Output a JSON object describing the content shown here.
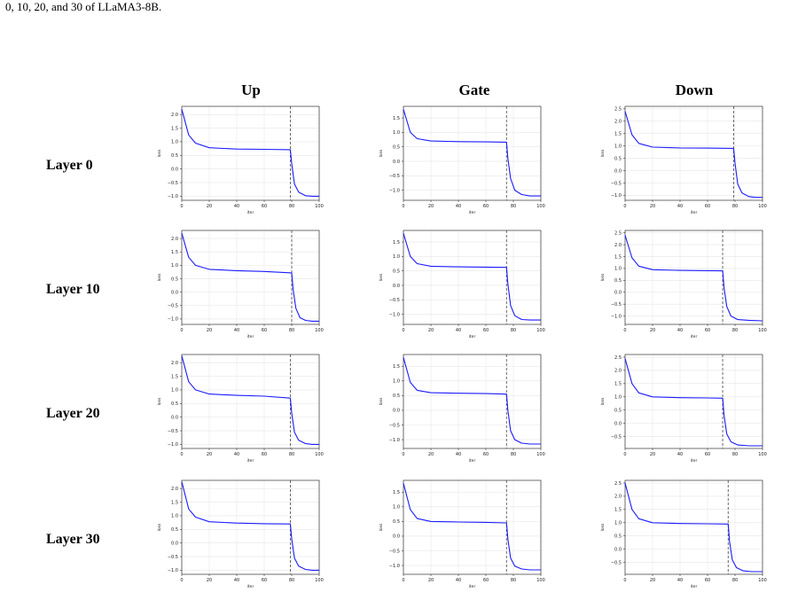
{
  "caption_fragment": "0, 10, 20, and 30 of LLaMA3-8B.",
  "column_titles": [
    "Up",
    "Gate",
    "Down"
  ],
  "row_titles": [
    "Layer 0",
    "Layer 10",
    "Layer 20",
    "Layer 30"
  ],
  "style": {
    "line_color": "#1a1aff",
    "dashed_color": "#444444",
    "grid_color": "#e6e6e6",
    "axis_color": "#333333"
  },
  "chart_data": [
    {
      "type": "line",
      "panel": "Layer 0 / Up",
      "xlabel": "iter",
      "ylabel": "loss",
      "xlim": [
        0,
        100
      ],
      "ylim": [
        -1.15,
        2.3
      ],
      "xticks": [
        0,
        20,
        40,
        60,
        80,
        100
      ],
      "yticks": [
        -1.0,
        -0.5,
        0.0,
        0.5,
        1.0,
        1.5,
        2.0
      ],
      "grid": true,
      "switch_iter": 79,
      "x": [
        0,
        5,
        10,
        20,
        40,
        60,
        79,
        80,
        82,
        85,
        90,
        95,
        100
      ],
      "y": [
        2.2,
        1.25,
        0.95,
        0.78,
        0.73,
        0.72,
        0.71,
        0.2,
        -0.55,
        -0.85,
        -0.98,
        -1.0,
        -1.0
      ]
    },
    {
      "type": "line",
      "panel": "Layer 0 / Gate",
      "xlabel": "iter",
      "ylabel": "loss",
      "xlim": [
        0,
        100
      ],
      "ylim": [
        -1.35,
        1.9
      ],
      "xticks": [
        0,
        20,
        40,
        60,
        80,
        100
      ],
      "yticks": [
        -1.0,
        -0.5,
        0.0,
        0.5,
        1.0,
        1.5
      ],
      "grid": true,
      "switch_iter": 75,
      "x": [
        0,
        5,
        10,
        20,
        40,
        60,
        75,
        76,
        78,
        81,
        86,
        92,
        100
      ],
      "y": [
        1.8,
        1.0,
        0.78,
        0.7,
        0.68,
        0.67,
        0.66,
        0.1,
        -0.6,
        -1.0,
        -1.15,
        -1.2,
        -1.2
      ]
    },
    {
      "type": "line",
      "panel": "Layer 0 / Down",
      "xlabel": "iter",
      "ylabel": "loss",
      "xlim": [
        0,
        100
      ],
      "ylim": [
        -1.2,
        2.6
      ],
      "xticks": [
        0,
        20,
        40,
        60,
        80,
        100
      ],
      "yticks": [
        -1.0,
        -0.5,
        0.0,
        0.5,
        1.0,
        1.5,
        2.0,
        2.5
      ],
      "grid": true,
      "switch_iter": 79,
      "x": [
        0,
        5,
        10,
        20,
        40,
        60,
        79,
        80,
        82,
        85,
        90,
        95,
        100
      ],
      "y": [
        2.4,
        1.45,
        1.1,
        0.95,
        0.92,
        0.91,
        0.9,
        0.3,
        -0.55,
        -0.9,
        -1.05,
        -1.08,
        -1.08
      ]
    },
    {
      "type": "line",
      "panel": "Layer 10 / Up",
      "xlabel": "iter",
      "ylabel": "loss",
      "xlim": [
        0,
        100
      ],
      "ylim": [
        -1.2,
        2.3
      ],
      "xticks": [
        0,
        20,
        40,
        60,
        80,
        100
      ],
      "yticks": [
        -1.0,
        -0.5,
        0.0,
        0.5,
        1.0,
        1.5,
        2.0
      ],
      "grid": true,
      "switch_iter": 80,
      "x": [
        0,
        5,
        10,
        20,
        40,
        60,
        80,
        81,
        83,
        86,
        90,
        95,
        100
      ],
      "y": [
        2.2,
        1.3,
        1.0,
        0.85,
        0.8,
        0.77,
        0.72,
        0.1,
        -0.6,
        -0.95,
        -1.05,
        -1.08,
        -1.08
      ]
    },
    {
      "type": "line",
      "panel": "Layer 10 / Gate",
      "xlabel": "iter",
      "ylabel": "loss",
      "xlim": [
        0,
        100
      ],
      "ylim": [
        -1.35,
        1.9
      ],
      "xticks": [
        0,
        20,
        40,
        60,
        80,
        100
      ],
      "yticks": [
        -1.0,
        -0.5,
        0.0,
        0.5,
        1.0,
        1.5
      ],
      "grid": true,
      "switch_iter": 75,
      "x": [
        0,
        5,
        10,
        20,
        40,
        60,
        75,
        76,
        78,
        81,
        86,
        92,
        100
      ],
      "y": [
        1.8,
        1.0,
        0.75,
        0.66,
        0.64,
        0.63,
        0.62,
        0.05,
        -0.7,
        -1.05,
        -1.18,
        -1.2,
        -1.2
      ]
    },
    {
      "type": "line",
      "panel": "Layer 10 / Down",
      "xlabel": "iter",
      "ylabel": "loss",
      "xlim": [
        0,
        100
      ],
      "ylim": [
        -1.35,
        2.6
      ],
      "xticks": [
        0,
        20,
        40,
        60,
        80,
        100
      ],
      "yticks": [
        -1.0,
        -0.5,
        0.0,
        0.5,
        1.0,
        1.5,
        2.0,
        2.5
      ],
      "grid": true,
      "switch_iter": 71,
      "x": [
        0,
        5,
        10,
        20,
        40,
        60,
        71,
        72,
        74,
        77,
        82,
        90,
        100
      ],
      "y": [
        2.4,
        1.45,
        1.1,
        0.95,
        0.92,
        0.91,
        0.9,
        0.2,
        -0.6,
        -1.0,
        -1.15,
        -1.18,
        -1.2
      ]
    },
    {
      "type": "line",
      "panel": "Layer 20 / Up",
      "xlabel": "iter",
      "ylabel": "loss",
      "xlim": [
        0,
        100
      ],
      "ylim": [
        -1.15,
        2.3
      ],
      "xticks": [
        0,
        20,
        40,
        60,
        80,
        100
      ],
      "yticks": [
        -1.0,
        -0.5,
        0.0,
        0.5,
        1.0,
        1.5,
        2.0
      ],
      "grid": true,
      "switch_iter": 79,
      "x": [
        0,
        5,
        10,
        20,
        40,
        60,
        79,
        80,
        82,
        85,
        90,
        95,
        100
      ],
      "y": [
        2.25,
        1.3,
        1.0,
        0.85,
        0.8,
        0.77,
        0.7,
        0.15,
        -0.55,
        -0.85,
        -0.97,
        -1.0,
        -1.0
      ]
    },
    {
      "type": "line",
      "panel": "Layer 20 / Gate",
      "xlabel": "iter",
      "ylabel": "loss",
      "xlim": [
        0,
        100
      ],
      "ylim": [
        -1.3,
        1.9
      ],
      "xticks": [
        0,
        20,
        40,
        60,
        80,
        100
      ],
      "yticks": [
        -1.0,
        -0.5,
        0.0,
        0.5,
        1.0,
        1.5
      ],
      "grid": true,
      "switch_iter": 75,
      "x": [
        0,
        5,
        10,
        20,
        40,
        60,
        75,
        76,
        78,
        81,
        86,
        92,
        100
      ],
      "y": [
        1.8,
        0.95,
        0.68,
        0.6,
        0.58,
        0.57,
        0.55,
        0.0,
        -0.7,
        -1.0,
        -1.12,
        -1.15,
        -1.15
      ]
    },
    {
      "type": "line",
      "panel": "Layer 20 / Down",
      "xlabel": "iter",
      "ylabel": "loss",
      "xlim": [
        0,
        100
      ],
      "ylim": [
        -0.95,
        2.6
      ],
      "xticks": [
        0,
        20,
        40,
        60,
        80,
        100
      ],
      "yticks": [
        -0.5,
        0.0,
        0.5,
        1.0,
        1.5,
        2.0,
        2.5
      ],
      "grid": true,
      "switch_iter": 71,
      "x": [
        0,
        5,
        10,
        20,
        40,
        60,
        71,
        72,
        74,
        77,
        82,
        90,
        100
      ],
      "y": [
        2.45,
        1.5,
        1.15,
        1.0,
        0.97,
        0.96,
        0.95,
        0.3,
        -0.4,
        -0.7,
        -0.82,
        -0.85,
        -0.85
      ]
    },
    {
      "type": "line",
      "panel": "Layer 30 / Up",
      "xlabel": "iter",
      "ylabel": "loss",
      "xlim": [
        0,
        100
      ],
      "ylim": [
        -1.15,
        2.3
      ],
      "xticks": [
        0,
        20,
        40,
        60,
        80,
        100
      ],
      "yticks": [
        -1.0,
        -0.5,
        0.0,
        0.5,
        1.0,
        1.5,
        2.0
      ],
      "grid": true,
      "switch_iter": 79,
      "x": [
        0,
        5,
        10,
        20,
        40,
        60,
        79,
        80,
        82,
        85,
        90,
        95,
        100
      ],
      "y": [
        2.25,
        1.25,
        0.95,
        0.78,
        0.73,
        0.71,
        0.7,
        0.15,
        -0.55,
        -0.85,
        -0.97,
        -1.0,
        -1.0
      ]
    },
    {
      "type": "line",
      "panel": "Layer 30 / Gate",
      "xlabel": "iter",
      "ylabel": "loss",
      "xlim": [
        0,
        100
      ],
      "ylim": [
        -1.3,
        1.9
      ],
      "xticks": [
        0,
        20,
        40,
        60,
        80,
        100
      ],
      "yticks": [
        -1.0,
        -0.5,
        0.0,
        0.5,
        1.0,
        1.5
      ],
      "grid": true,
      "switch_iter": 75,
      "x": [
        0,
        5,
        10,
        20,
        40,
        60,
        75,
        76,
        78,
        81,
        86,
        92,
        100
      ],
      "y": [
        1.8,
        0.9,
        0.6,
        0.5,
        0.48,
        0.47,
        0.45,
        -0.1,
        -0.75,
        -1.02,
        -1.12,
        -1.15,
        -1.15
      ]
    },
    {
      "type": "line",
      "panel": "Layer 30 / Down",
      "xlabel": "iter",
      "ylabel": "loss",
      "xlim": [
        0,
        100
      ],
      "ylim": [
        -0.95,
        2.6
      ],
      "xticks": [
        0,
        20,
        40,
        60,
        80,
        100
      ],
      "yticks": [
        -0.5,
        0.0,
        0.5,
        1.0,
        1.5,
        2.0,
        2.5
      ],
      "grid": true,
      "switch_iter": 75,
      "x": [
        0,
        5,
        10,
        20,
        40,
        60,
        75,
        76,
        78,
        81,
        86,
        92,
        100
      ],
      "y": [
        2.5,
        1.5,
        1.15,
        1.0,
        0.97,
        0.96,
        0.95,
        0.3,
        -0.4,
        -0.7,
        -0.82,
        -0.85,
        -0.85
      ]
    }
  ]
}
